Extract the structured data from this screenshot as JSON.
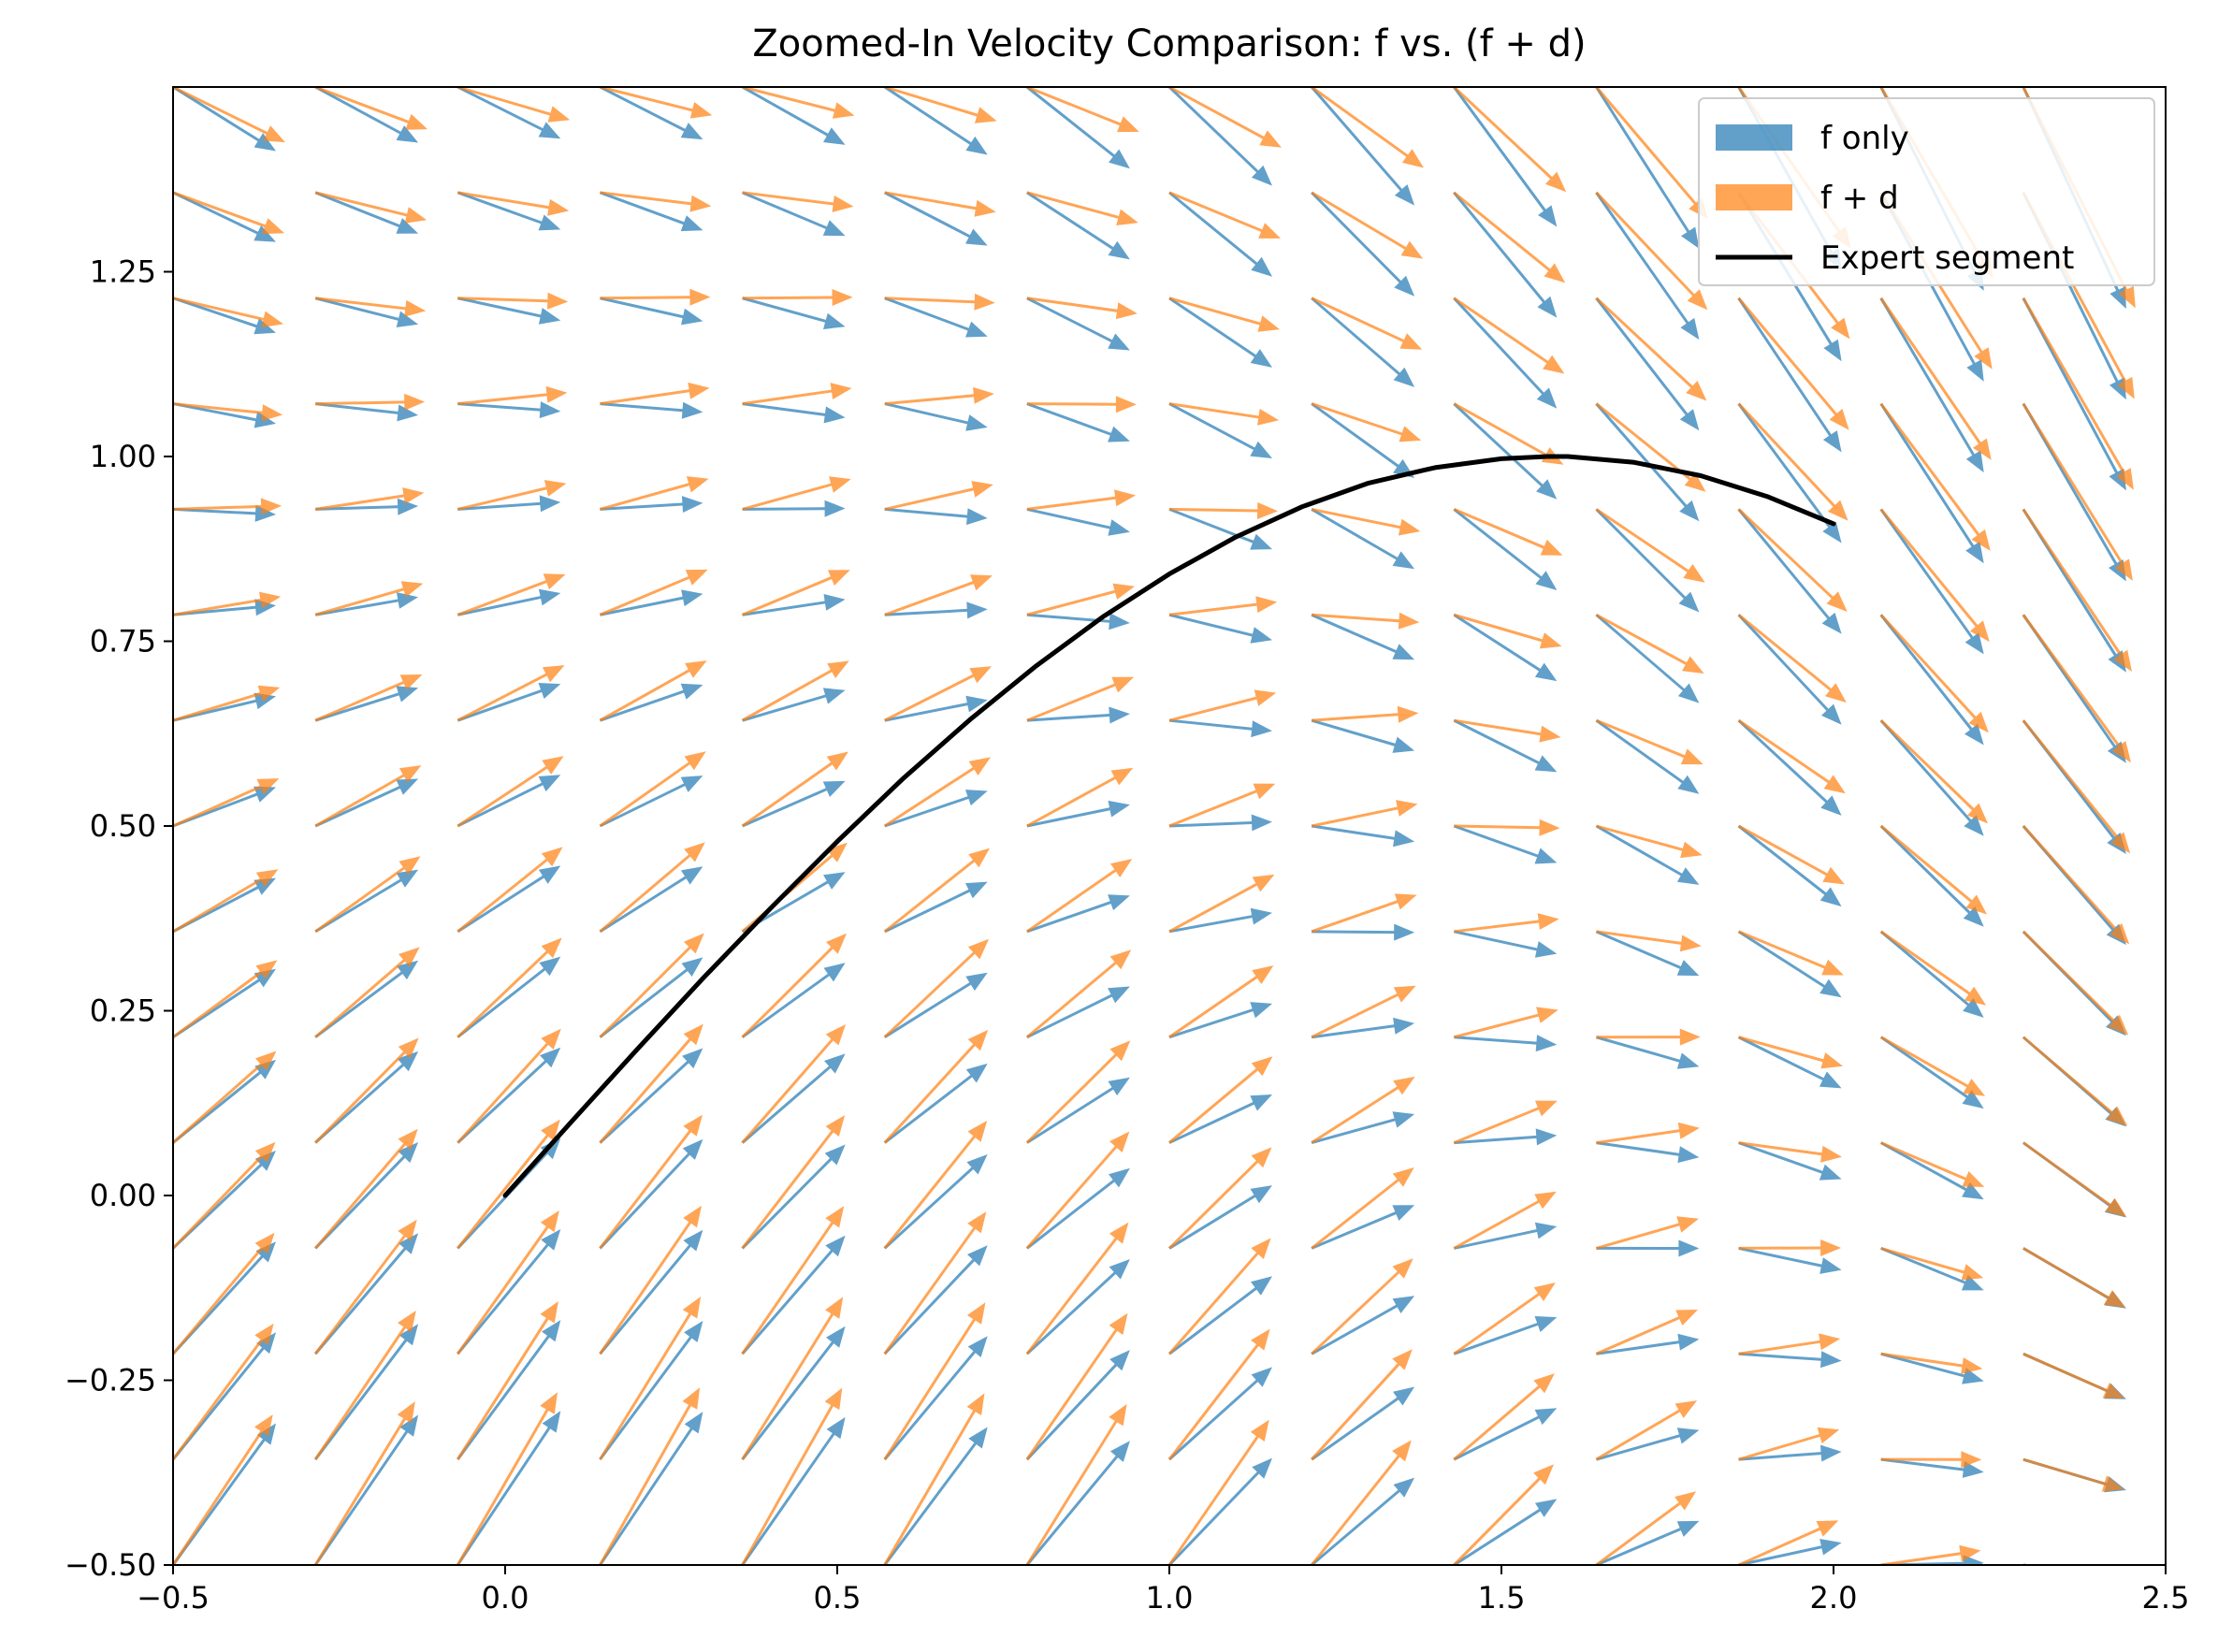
{
  "chart_data": {
    "type": "quiver",
    "title": "Zoomed-In Velocity Comparison: f vs. (f + d)",
    "xlabel": "",
    "ylabel": "",
    "xlim": [
      -0.5,
      2.5
    ],
    "ylim": [
      -0.5,
      1.5
    ],
    "x_ticks": [
      -0.5,
      0.0,
      0.5,
      1.0,
      1.5,
      2.0,
      2.5
    ],
    "x_tick_labels": [
      "−0.5",
      "0.0",
      "0.5",
      "1.0",
      "1.5",
      "2.0",
      "2.5"
    ],
    "y_ticks": [
      -0.5,
      -0.25,
      0.0,
      0.25,
      0.5,
      0.75,
      1.0,
      1.25
    ],
    "y_tick_labels": [
      "−0.50",
      "−0.25",
      "0.00",
      "0.25",
      "0.50",
      "0.75",
      "1.00",
      "1.25"
    ],
    "grid": false,
    "legend_position": "top-right",
    "series": [
      {
        "name": "f only",
        "kind": "quiver",
        "color": "#1f77b4",
        "alpha": 0.7,
        "grid_x": {
          "start": -0.5,
          "stop": 2.5,
          "count": 15
        },
        "grid_y": {
          "start": -0.5,
          "stop": 1.5,
          "count": 15
        },
        "field": "u = 1, v = cos(x) - y"
      },
      {
        "name": "f + d",
        "kind": "quiver",
        "color": "#ff7f0e",
        "alpha": 0.7,
        "grid_x": {
          "start": -0.5,
          "stop": 2.5,
          "count": 15
        },
        "grid_y": {
          "start": -0.5,
          "stop": 1.5,
          "count": 15
        },
        "field": "u = 1 + 0.06*y, v = cos(x) - y + 0.5*sin(x) - 0.25*(x - 0.8)"
      },
      {
        "name": "Expert segment",
        "kind": "line",
        "color": "#000000",
        "x": [
          0.0,
          0.1,
          0.2,
          0.3,
          0.4,
          0.5,
          0.6,
          0.7,
          0.8,
          0.9,
          1.0,
          1.1,
          1.2,
          1.3,
          1.4,
          1.5,
          1.57,
          1.6,
          1.7,
          1.8,
          1.9,
          2.0
        ],
        "y": [
          0.0,
          0.1,
          0.199,
          0.296,
          0.389,
          0.479,
          0.565,
          0.644,
          0.717,
          0.783,
          0.841,
          0.891,
          0.932,
          0.964,
          0.985,
          0.997,
          1.0,
          1.0,
          0.992,
          0.974,
          0.946,
          0.909
        ]
      }
    ]
  }
}
